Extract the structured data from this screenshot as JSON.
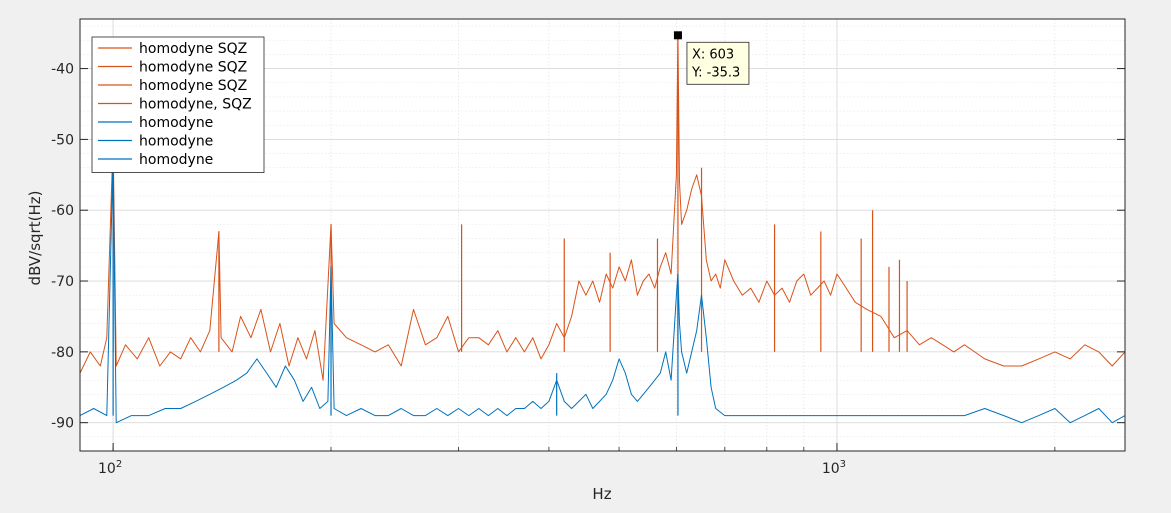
{
  "chart_data": {
    "type": "line",
    "title": "",
    "xlabel": "Hz",
    "ylabel": "dBV/sqrt(Hz)",
    "xscale": "log",
    "xlim": [
      90,
      2500
    ],
    "ylim": [
      -94,
      -33
    ],
    "grid": true,
    "legend_position": "top-left",
    "x_ticks": [
      {
        "base": "10",
        "exp": "2",
        "value": 100
      },
      {
        "base": "10",
        "exp": "3",
        "value": 1000
      }
    ],
    "y_ticks": [
      -40,
      -50,
      -60,
      -70,
      -80,
      -90
    ],
    "colors": {
      "sqz": "#d95319",
      "ref": "#0072bd"
    },
    "legend": [
      {
        "label": "homodyne SQZ",
        "color": "#d95319"
      },
      {
        "label": "homodyne SQZ",
        "color": "#d95319"
      },
      {
        "label": "homodyne SQZ",
        "color": "#d95319"
      },
      {
        "label": "homodyne, SQZ",
        "color": "#d95319"
      },
      {
        "label": "homodyne",
        "color": "#0072bd"
      },
      {
        "label": "homodyne",
        "color": "#0072bd"
      },
      {
        "label": "homodyne",
        "color": "#0072bd"
      }
    ],
    "series": [
      {
        "color": "#d95319",
        "points": [
          [
            90,
            -83
          ],
          [
            93,
            -80
          ],
          [
            96,
            -82
          ],
          [
            98,
            -78
          ],
          [
            100,
            -50
          ],
          [
            101,
            -82
          ],
          [
            104,
            -79
          ],
          [
            108,
            -81
          ],
          [
            112,
            -78
          ],
          [
            116,
            -82
          ],
          [
            120,
            -80
          ],
          [
            124,
            -81
          ],
          [
            128,
            -78
          ],
          [
            132,
            -80
          ],
          [
            136,
            -77
          ],
          [
            140,
            -63
          ],
          [
            141,
            -78
          ],
          [
            146,
            -80
          ],
          [
            150,
            -75
          ],
          [
            155,
            -78
          ],
          [
            160,
            -74
          ],
          [
            165,
            -80
          ],
          [
            170,
            -76
          ],
          [
            175,
            -82
          ],
          [
            180,
            -78
          ],
          [
            185,
            -81
          ],
          [
            190,
            -77
          ],
          [
            195,
            -84
          ],
          [
            200,
            -62
          ],
          [
            202,
            -76
          ],
          [
            210,
            -78
          ],
          [
            220,
            -79
          ],
          [
            230,
            -80
          ],
          [
            240,
            -79
          ],
          [
            250,
            -82
          ],
          [
            260,
            -74
          ],
          [
            270,
            -79
          ],
          [
            280,
            -78
          ],
          [
            290,
            -75
          ],
          [
            300,
            -80
          ],
          [
            310,
            -78
          ],
          [
            320,
            -78
          ],
          [
            330,
            -79
          ],
          [
            340,
            -77
          ],
          [
            350,
            -80
          ],
          [
            360,
            -78
          ],
          [
            370,
            -80
          ],
          [
            380,
            -78
          ],
          [
            390,
            -81
          ],
          [
            400,
            -79
          ],
          [
            410,
            -76
          ],
          [
            420,
            -78
          ],
          [
            430,
            -75
          ],
          [
            440,
            -70
          ],
          [
            450,
            -72
          ],
          [
            460,
            -70
          ],
          [
            470,
            -73
          ],
          [
            480,
            -69
          ],
          [
            490,
            -71
          ],
          [
            500,
            -68
          ],
          [
            510,
            -70
          ],
          [
            520,
            -67
          ],
          [
            530,
            -72
          ],
          [
            540,
            -70
          ],
          [
            550,
            -69
          ],
          [
            560,
            -71
          ],
          [
            570,
            -68
          ],
          [
            580,
            -66
          ],
          [
            590,
            -69
          ],
          [
            600,
            -55
          ],
          [
            603,
            -35.3
          ],
          [
            606,
            -56
          ],
          [
            610,
            -62
          ],
          [
            620,
            -60
          ],
          [
            630,
            -57
          ],
          [
            640,
            -55
          ],
          [
            650,
            -58
          ],
          [
            660,
            -67
          ],
          [
            670,
            -70
          ],
          [
            680,
            -69
          ],
          [
            690,
            -71
          ],
          [
            700,
            -67
          ],
          [
            720,
            -70
          ],
          [
            740,
            -72
          ],
          [
            760,
            -71
          ],
          [
            780,
            -73
          ],
          [
            800,
            -70
          ],
          [
            820,
            -72
          ],
          [
            840,
            -71
          ],
          [
            860,
            -73
          ],
          [
            880,
            -70
          ],
          [
            900,
            -69
          ],
          [
            920,
            -72
          ],
          [
            940,
            -71
          ],
          [
            960,
            -70
          ],
          [
            980,
            -72
          ],
          [
            1000,
            -69
          ],
          [
            1030,
            -71
          ],
          [
            1060,
            -73
          ],
          [
            1100,
            -74
          ],
          [
            1150,
            -75
          ],
          [
            1200,
            -78
          ],
          [
            1250,
            -77
          ],
          [
            1300,
            -79
          ],
          [
            1350,
            -78
          ],
          [
            1400,
            -79
          ],
          [
            1450,
            -80
          ],
          [
            1500,
            -79
          ],
          [
            1550,
            -80
          ],
          [
            1600,
            -81
          ],
          [
            1700,
            -82
          ],
          [
            1800,
            -82
          ],
          [
            1900,
            -81
          ],
          [
            2000,
            -80
          ],
          [
            2100,
            -81
          ],
          [
            2200,
            -79
          ],
          [
            2300,
            -80
          ],
          [
            2400,
            -82
          ],
          [
            2500,
            -80
          ]
        ],
        "spikes": [
          [
            100,
            -50
          ],
          [
            140,
            -63
          ],
          [
            200,
            -62
          ],
          [
            303,
            -62
          ],
          [
            420,
            -64
          ],
          [
            486,
            -66
          ],
          [
            565,
            -64
          ],
          [
            603,
            -35.3
          ],
          [
            650,
            -54
          ],
          [
            820,
            -62
          ],
          [
            950,
            -63
          ],
          [
            1080,
            -64
          ],
          [
            1120,
            -60
          ],
          [
            1180,
            -68
          ],
          [
            1220,
            -67
          ],
          [
            1250,
            -70
          ]
        ]
      },
      {
        "color": "#0072bd",
        "points": [
          [
            90,
            -89
          ],
          [
            94,
            -88
          ],
          [
            98,
            -89
          ],
          [
            100,
            -52
          ],
          [
            101,
            -90
          ],
          [
            106,
            -89
          ],
          [
            112,
            -89
          ],
          [
            118,
            -88
          ],
          [
            124,
            -88
          ],
          [
            130,
            -87
          ],
          [
            136,
            -86
          ],
          [
            142,
            -85
          ],
          [
            148,
            -84
          ],
          [
            153,
            -83
          ],
          [
            158,
            -81
          ],
          [
            163,
            -83
          ],
          [
            168,
            -85
          ],
          [
            173,
            -82
          ],
          [
            178,
            -84
          ],
          [
            183,
            -87
          ],
          [
            188,
            -85
          ],
          [
            193,
            -88
          ],
          [
            198,
            -87
          ],
          [
            200,
            -68
          ],
          [
            202,
            -88
          ],
          [
            210,
            -89
          ],
          [
            220,
            -88
          ],
          [
            230,
            -89
          ],
          [
            240,
            -89
          ],
          [
            250,
            -88
          ],
          [
            260,
            -89
          ],
          [
            270,
            -89
          ],
          [
            280,
            -88
          ],
          [
            290,
            -89
          ],
          [
            300,
            -88
          ],
          [
            310,
            -89
          ],
          [
            320,
            -88
          ],
          [
            330,
            -89
          ],
          [
            340,
            -88
          ],
          [
            350,
            -89
          ],
          [
            360,
            -88
          ],
          [
            370,
            -88
          ],
          [
            380,
            -87
          ],
          [
            390,
            -88
          ],
          [
            400,
            -87
          ],
          [
            410,
            -84
          ],
          [
            420,
            -87
          ],
          [
            430,
            -88
          ],
          [
            440,
            -87
          ],
          [
            450,
            -86
          ],
          [
            460,
            -88
          ],
          [
            470,
            -87
          ],
          [
            480,
            -86
          ],
          [
            490,
            -84
          ],
          [
            500,
            -81
          ],
          [
            510,
            -83
          ],
          [
            520,
            -86
          ],
          [
            530,
            -87
          ],
          [
            540,
            -86
          ],
          [
            550,
            -85
          ],
          [
            560,
            -84
          ],
          [
            570,
            -83
          ],
          [
            580,
            -80
          ],
          [
            590,
            -84
          ],
          [
            600,
            -72
          ],
          [
            603,
            -69
          ],
          [
            606,
            -76
          ],
          [
            610,
            -80
          ],
          [
            620,
            -83
          ],
          [
            630,
            -80
          ],
          [
            640,
            -77
          ],
          [
            650,
            -72
          ],
          [
            660,
            -78
          ],
          [
            670,
            -85
          ],
          [
            680,
            -88
          ],
          [
            700,
            -89
          ],
          [
            730,
            -89
          ],
          [
            760,
            -89
          ],
          [
            790,
            -89
          ],
          [
            820,
            -89
          ],
          [
            850,
            -89
          ],
          [
            880,
            -89
          ],
          [
            910,
            -89
          ],
          [
            940,
            -89
          ],
          [
            970,
            -89
          ],
          [
            1000,
            -89
          ],
          [
            1050,
            -89
          ],
          [
            1100,
            -89
          ],
          [
            1150,
            -89
          ],
          [
            1200,
            -89
          ],
          [
            1250,
            -89
          ],
          [
            1300,
            -89
          ],
          [
            1350,
            -89
          ],
          [
            1400,
            -89
          ],
          [
            1450,
            -89
          ],
          [
            1500,
            -89
          ],
          [
            1600,
            -88
          ],
          [
            1700,
            -89
          ],
          [
            1800,
            -90
          ],
          [
            1900,
            -89
          ],
          [
            2000,
            -88
          ],
          [
            2100,
            -90
          ],
          [
            2200,
            -89
          ],
          [
            2300,
            -88
          ],
          [
            2400,
            -90
          ],
          [
            2500,
            -89
          ]
        ],
        "spikes": [
          [
            100,
            -52
          ],
          [
            200,
            -68
          ],
          [
            410,
            -83
          ],
          [
            603,
            -69
          ]
        ]
      }
    ],
    "datatip": {
      "x": 603,
      "y": -35.3,
      "x_label": "X: 603",
      "y_label": "Y: -35.3"
    }
  }
}
